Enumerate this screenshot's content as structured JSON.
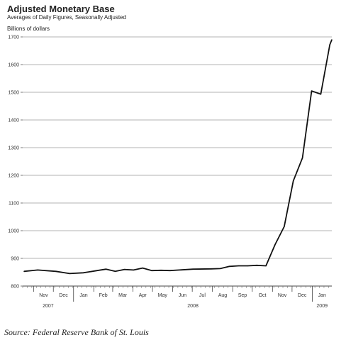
{
  "chart_data": {
    "type": "line",
    "title": "Adjusted Monetary Base",
    "subtitle": "Averages of Daily Figures, Seasonally Adjusted",
    "ylabel": "Billions of dollars",
    "xlabel": "",
    "ylim": [
      800,
      1700
    ],
    "yticks": [
      800,
      900,
      1000,
      1100,
      1200,
      1300,
      1400,
      1500,
      1600,
      1700
    ],
    "grid": "horizontal",
    "months": [
      "Nov",
      "Dec",
      "Jan",
      "Feb",
      "Mar",
      "Apr",
      "May",
      "Jun",
      "Jul",
      "Aug",
      "Sep",
      "Oct",
      "Nov",
      "Dec",
      "Jan"
    ],
    "years": [
      "2007",
      "2008",
      "2009"
    ],
    "x_start": "2007-10-15",
    "x_end": "2009-01-31",
    "series": [
      {
        "color": "#111111",
        "points": [
          {
            "x": "2007-10-17",
            "y": 853
          },
          {
            "x": "2007-11-07",
            "y": 858
          },
          {
            "x": "2007-12-05",
            "y": 853
          },
          {
            "x": "2007-12-26",
            "y": 845
          },
          {
            "x": "2008-01-16",
            "y": 848
          },
          {
            "x": "2008-02-06",
            "y": 856
          },
          {
            "x": "2008-02-20",
            "y": 861
          },
          {
            "x": "2008-03-05",
            "y": 853
          },
          {
            "x": "2008-03-19",
            "y": 860
          },
          {
            "x": "2008-04-02",
            "y": 858
          },
          {
            "x": "2008-04-16",
            "y": 865
          },
          {
            "x": "2008-04-30",
            "y": 856
          },
          {
            "x": "2008-05-14",
            "y": 857
          },
          {
            "x": "2008-05-28",
            "y": 856
          },
          {
            "x": "2008-06-11",
            "y": 858
          },
          {
            "x": "2008-07-02",
            "y": 861
          },
          {
            "x": "2008-07-30",
            "y": 862
          },
          {
            "x": "2008-08-13",
            "y": 863
          },
          {
            "x": "2008-08-27",
            "y": 871
          },
          {
            "x": "2008-09-10",
            "y": 873
          },
          {
            "x": "2008-09-24",
            "y": 873
          },
          {
            "x": "2008-10-08",
            "y": 875
          },
          {
            "x": "2008-10-22",
            "y": 873
          },
          {
            "x": "2008-11-05",
            "y": 950
          },
          {
            "x": "2008-11-19",
            "y": 1015
          },
          {
            "x": "2008-12-03",
            "y": 1180
          },
          {
            "x": "2008-12-17",
            "y": 1263
          },
          {
            "x": "2008-12-31",
            "y": 1505
          },
          {
            "x": "2009-01-14",
            "y": 1493
          },
          {
            "x": "2009-01-28",
            "y": 1672
          },
          {
            "x": "2009-02-11",
            "y": 1690
          }
        ]
      }
    ],
    "source": "Source: Federal Reserve Bank of St. Louis"
  }
}
